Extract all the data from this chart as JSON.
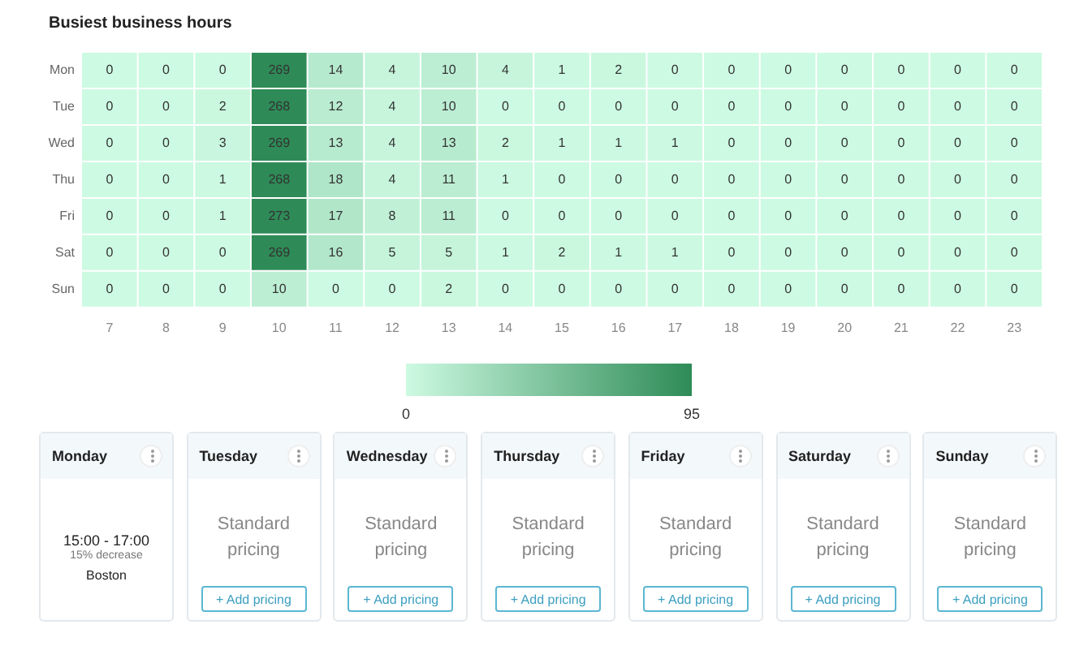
{
  "chart_data": [
    {
      "type": "heatmap",
      "title": "Busiest business hours",
      "categories": [
        "7",
        "8",
        "9",
        "10",
        "11",
        "12",
        "13",
        "14",
        "15",
        "16",
        "17",
        "18",
        "19",
        "20",
        "21",
        "22",
        "23"
      ],
      "y_categories": [
        "Mon",
        "Tue",
        "Wed",
        "Thu",
        "Fri",
        "Sat",
        "Sun"
      ],
      "cells": [
        [
          0,
          0,
          0,
          269,
          14,
          4,
          10,
          4,
          1,
          2,
          0,
          0,
          0,
          0,
          0,
          0,
          0
        ],
        [
          0,
          0,
          2,
          268,
          12,
          4,
          10,
          0,
          0,
          0,
          0,
          0,
          0,
          0,
          0,
          0,
          0
        ],
        [
          0,
          0,
          3,
          269,
          13,
          4,
          13,
          2,
          1,
          1,
          1,
          0,
          0,
          0,
          0,
          0,
          0
        ],
        [
          0,
          0,
          1,
          268,
          18,
          4,
          11,
          1,
          0,
          0,
          0,
          0,
          0,
          0,
          0,
          0,
          0
        ],
        [
          0,
          0,
          1,
          273,
          17,
          8,
          11,
          0,
          0,
          0,
          0,
          0,
          0,
          0,
          0,
          0,
          0
        ],
        [
          0,
          0,
          0,
          269,
          16,
          5,
          5,
          1,
          2,
          1,
          1,
          0,
          0,
          0,
          0,
          0,
          0
        ],
        [
          0,
          0,
          0,
          10,
          0,
          0,
          2,
          0,
          0,
          0,
          0,
          0,
          0,
          0,
          0,
          0,
          0
        ]
      ],
      "data_labels": true,
      "clim": [
        0,
        95
      ],
      "cticks": [
        0,
        95
      ]
    },
    {
      "type": "other",
      "categories": [
        "Monday",
        "Tuesday",
        "Wednesday",
        "Thursday",
        "Friday",
        "Saturday",
        "Sunday"
      ],
      "annotations": [
        {
          "text": "15:00 - 17:00",
          "x": "Monday"
        },
        {
          "text": "15% decrease",
          "x": "Monday"
        },
        {
          "text": "Boston",
          "x": "Monday"
        },
        {
          "text": "Standard pricing",
          "x": "Tuesday"
        },
        {
          "text": "+ Add pricing",
          "x": "Tuesday"
        },
        {
          "text": "Standard pricing",
          "x": "Wednesday"
        },
        {
          "text": "+ Add pricing",
          "x": "Wednesday"
        },
        {
          "text": "Standard pricing",
          "x": "Thursday"
        },
        {
          "text": "+ Add pricing",
          "x": "Thursday"
        },
        {
          "text": "Standard pricing",
          "x": "Friday"
        },
        {
          "text": "+ Add pricing",
          "x": "Friday"
        },
        {
          "text": "Standard pricing",
          "x": "Saturday"
        },
        {
          "text": "+ Add pricing",
          "x": "Saturday"
        },
        {
          "text": "Standard pricing",
          "x": "Sunday"
        },
        {
          "text": "+ Add pricing",
          "x": "Sunday"
        }
      ]
    }
  ]
}
